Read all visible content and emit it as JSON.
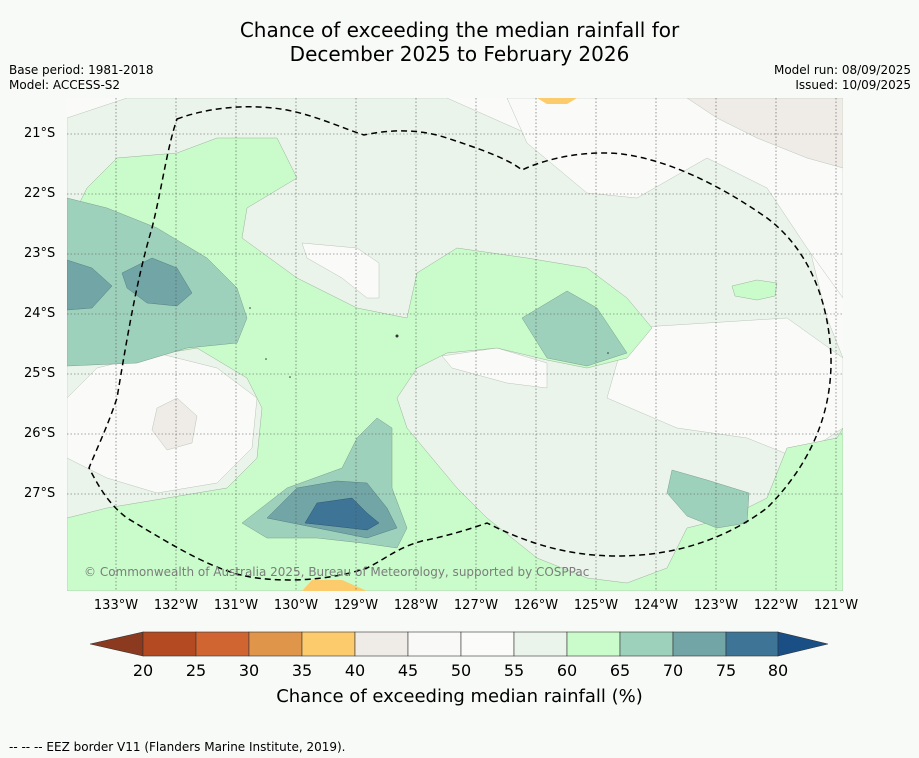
{
  "title_line1": "Chance of exceeding the median rainfall for",
  "title_line2": "December 2025 to February 2026",
  "base_period": "Base period: 1981-2018",
  "model": "Model: ACCESS-S2",
  "model_run": "Model run: 08/09/2025",
  "issued": "Issued: 10/09/2025",
  "copyright": "© Commonwealth of Australia 2025, Bureau of Meteorology, supported by COSPPac",
  "lat_labels": [
    "21°S",
    "22°S",
    "23°S",
    "24°S",
    "25°S",
    "26°S",
    "27°S"
  ],
  "lon_labels": [
    "133°W",
    "132°W",
    "131°W",
    "130°W",
    "129°W",
    "128°W",
    "127°W",
    "126°W",
    "125°W",
    "124°W",
    "123°W",
    "122°W",
    "121°W"
  ],
  "colorbar": {
    "label": "Chance of exceeding median rainfall (%)",
    "ticks": [
      "20",
      "25",
      "30",
      "35",
      "40",
      "45",
      "50",
      "55",
      "60",
      "65",
      "70",
      "75",
      "80"
    ],
    "colors": {
      "below20": "#8b3a1f",
      "20-25": "#b44a22",
      "25-30": "#d06532",
      "30-35": "#e0964a",
      "35-40": "#fccb6b",
      "40-45": "#efebe6",
      "45-50": "#f9faf8",
      "50-55": "#fbfcfa",
      "55-60": "#eaf4ea",
      "60-65": "#c9fcca",
      "65-70": "#9ed1bb",
      "70-75": "#71a5a6",
      "75-80": "#3e7495",
      "above80": "#1a4f86"
    }
  },
  "footnote": "-- -- -- EEZ border V11 (Flanders Marine Institute, 2019)."
}
